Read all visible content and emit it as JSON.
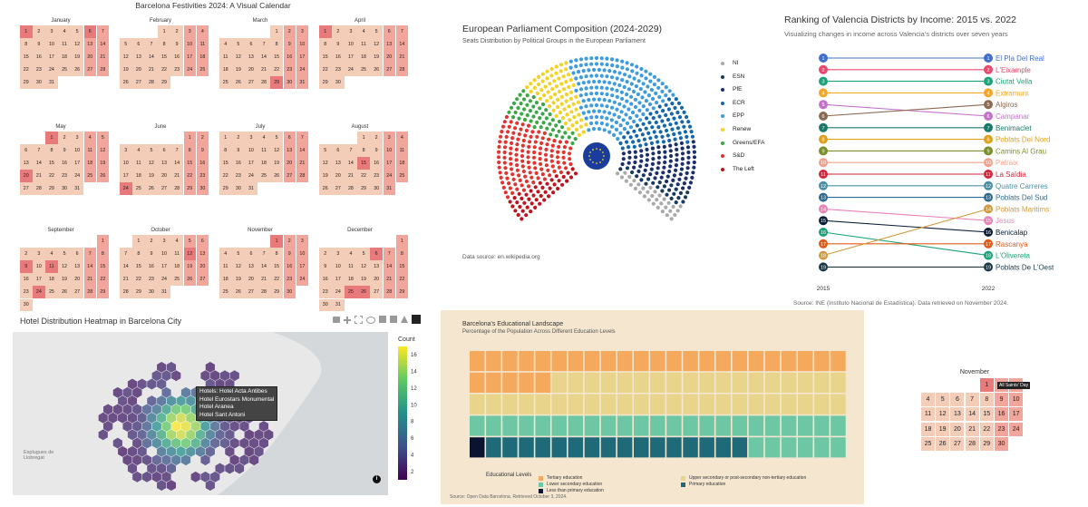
{
  "chart_data": [
    {
      "type": "heatmap",
      "title": "Barcelona Festivities 2024: A Visual Calendar",
      "weekday_order": "Monday first",
      "colors": {
        "weekday": "#f4cdb9",
        "weekend": "#f2a59a",
        "holiday": "#e97a7c"
      },
      "months": [
        {
          "name": "January",
          "start_weekday": 0,
          "days": 31,
          "holidays": [
            1,
            6
          ]
        },
        {
          "name": "February",
          "start_weekday": 3,
          "days": 29,
          "holidays": []
        },
        {
          "name": "March",
          "start_weekday": 4,
          "days": 31,
          "holidays": [
            29
          ]
        },
        {
          "name": "April",
          "start_weekday": 0,
          "days": 30,
          "holidays": [
            1
          ]
        },
        {
          "name": "May",
          "start_weekday": 2,
          "days": 31,
          "holidays": [
            1,
            20
          ]
        },
        {
          "name": "June",
          "start_weekday": 5,
          "days": 30,
          "holidays": [
            24
          ]
        },
        {
          "name": "July",
          "start_weekday": 0,
          "days": 31,
          "holidays": []
        },
        {
          "name": "August",
          "start_weekday": 3,
          "days": 31,
          "holidays": [
            15
          ]
        },
        {
          "name": "September",
          "start_weekday": 6,
          "days": 30,
          "holidays": [
            9,
            11,
            24
          ]
        },
        {
          "name": "October",
          "start_weekday": 1,
          "days": 31,
          "holidays": [
            12
          ]
        },
        {
          "name": "November",
          "start_weekday": 4,
          "days": 30,
          "holidays": [
            1
          ]
        },
        {
          "name": "December",
          "start_weekday": 6,
          "days": 31,
          "holidays": [
            6,
            25,
            26
          ]
        }
      ]
    },
    {
      "type": "parliament",
      "title": "European Parliament Composition (2024-2029)",
      "subtitle": "Seats Distribution by Political Groups in the European Parliament",
      "source": "Data source: en.wikipedia.org",
      "series": [
        {
          "name": "The Left",
          "value": 46,
          "color": "#c0141c"
        },
        {
          "name": "S&D",
          "value": 136,
          "color": "#e3342f"
        },
        {
          "name": "Greens/EFA",
          "value": 53,
          "color": "#3aa845"
        },
        {
          "name": "Renew",
          "value": 77,
          "color": "#f3d224"
        },
        {
          "name": "EPP",
          "value": 188,
          "color": "#3d9be0"
        },
        {
          "name": "ECR",
          "value": 78,
          "color": "#1467ad"
        },
        {
          "name": "PfE",
          "value": 84,
          "color": "#1b2f6e"
        },
        {
          "name": "ESN",
          "value": 25,
          "color": "#173b5c"
        },
        {
          "name": "NI",
          "value": 33,
          "color": "#a9a9a9"
        }
      ],
      "legend_order": [
        "NI",
        "ESN",
        "PfE",
        "ECR",
        "EPP",
        "Renew",
        "Greens/EFA",
        "S&D",
        "The Left"
      ]
    },
    {
      "type": "line",
      "title": "Ranking of Valencia Districts by Income: 2015 vs. 2022",
      "subtitle": "Visualizing changes in income across Valencia's districts over seven years",
      "source": "Source: INE (Instituto Nacional de Estadística). Data retrieved on November 2024.",
      "x": [
        "2015",
        "2022"
      ],
      "series": [
        {
          "name": "El Pla Del Real",
          "values": [
            1,
            1
          ],
          "color": "#3f6fd0"
        },
        {
          "name": "L'Eixample",
          "values": [
            2,
            2
          ],
          "color": "#e8496c"
        },
        {
          "name": "Ciutat Vella",
          "values": [
            3,
            3
          ],
          "color": "#1aa37a"
        },
        {
          "name": "Extramurs",
          "values": [
            4,
            4
          ],
          "color": "#f5a623"
        },
        {
          "name": "Campanar",
          "values": [
            5,
            6
          ],
          "color": "#c471c9"
        },
        {
          "name": "Algiros",
          "values": [
            6,
            5
          ],
          "color": "#8b6a52"
        },
        {
          "name": "Benimaclet",
          "values": [
            7,
            7
          ],
          "color": "#1a7a6a"
        },
        {
          "name": "Poblats Del Nord",
          "values": [
            8,
            8
          ],
          "color": "#e0a11a"
        },
        {
          "name": "Camins Al Grau",
          "values": [
            9,
            9
          ],
          "color": "#7a8f2a"
        },
        {
          "name": "Patraix",
          "values": [
            10,
            10
          ],
          "color": "#f3a08a"
        },
        {
          "name": "La Saïdia",
          "values": [
            11,
            11
          ],
          "color": "#d6243a"
        },
        {
          "name": "Quatre Carreres",
          "values": [
            12,
            12
          ],
          "color": "#4a90a4"
        },
        {
          "name": "Poblats Del Sud",
          "values": [
            13,
            13
          ],
          "color": "#2b6b8f"
        },
        {
          "name": "Jesus",
          "values": [
            14,
            15
          ],
          "color": "#e982b8"
        },
        {
          "name": "Benicalap",
          "values": [
            15,
            16
          ],
          "color": "#0b1e3a"
        },
        {
          "name": "L'Olivereta",
          "values": [
            16,
            18
          ],
          "color": "#1aa37a"
        },
        {
          "name": "Rascanya",
          "values": [
            17,
            17
          ],
          "color": "#e05a1a"
        },
        {
          "name": "Poblats Maritims",
          "values": [
            18,
            14
          ],
          "color": "#d19a3a"
        },
        {
          "name": "Poblats De L'Oest",
          "values": [
            19,
            19
          ],
          "color": "#1a3a4a"
        }
      ]
    },
    {
      "type": "heatmap",
      "title": "Hotel Distribution Heatmap in Barcelona City",
      "colorbar_label": "Count",
      "colorbar_ticks": [
        2,
        4,
        6,
        8,
        10,
        12,
        14,
        16
      ],
      "tooltip": [
        "Hotels: Hotel Acta Antibes",
        "Hotel Eurostars Monumental",
        "Hotel Aranea",
        "Hotel Sant Antoni"
      ],
      "map_label": "Esplugues de Llobregat"
    },
    {
      "type": "bar",
      "title": "Barcelona's Educational Landscape",
      "subtitle": "Percentage of the Population Across Different Education Levels",
      "source": "Source: Open Data Barcelona. Retrieved October 3, 2024.",
      "legend_title": "Educational Levels",
      "categories_count": 23,
      "series": [
        {
          "name": "Tertiary education",
          "color": "#f5a95c",
          "values": [
            1,
            1,
            1,
            1,
            1,
            1,
            1,
            1,
            1,
            1,
            1,
            1,
            1,
            1,
            1,
            1,
            1,
            1,
            1,
            1,
            1,
            1,
            1
          ]
        },
        {
          "name": "Upper secondary or post-secondary non-tertiary education",
          "color": "#e8d48a",
          "values": [
            1,
            1,
            1,
            1,
            1,
            0,
            0,
            0,
            0,
            0,
            0,
            0,
            0,
            0,
            0,
            0,
            0,
            0,
            0,
            0,
            0,
            0,
            0
          ]
        },
        {
          "name": "Lower secondary education",
          "color": "#6dc7a4",
          "values": [
            1,
            1,
            1,
            1,
            1,
            1,
            1,
            1,
            1,
            1,
            1,
            1,
            1,
            1,
            1,
            1,
            1,
            1,
            1,
            1,
            1,
            1,
            1
          ]
        },
        {
          "name": "Primary education",
          "color": "#1f6a78",
          "values": [
            0,
            1,
            1,
            1,
            1,
            1,
            1,
            1,
            1,
            1,
            1,
            1,
            1,
            1,
            1,
            1,
            1,
            0,
            0,
            0,
            0,
            0,
            0
          ]
        },
        {
          "name": "Less than primary education",
          "color": "#0a1330",
          "values": [
            1,
            0,
            0,
            0,
            0,
            0,
            0,
            0,
            0,
            0,
            0,
            0,
            0,
            0,
            0,
            0,
            0,
            0,
            0,
            0,
            0,
            0,
            0
          ]
        }
      ]
    },
    {
      "type": "heatmap",
      "title": "November",
      "start_weekday": 4,
      "days": 30,
      "holiday": 1,
      "tooltip": "All Saints' Day"
    }
  ]
}
